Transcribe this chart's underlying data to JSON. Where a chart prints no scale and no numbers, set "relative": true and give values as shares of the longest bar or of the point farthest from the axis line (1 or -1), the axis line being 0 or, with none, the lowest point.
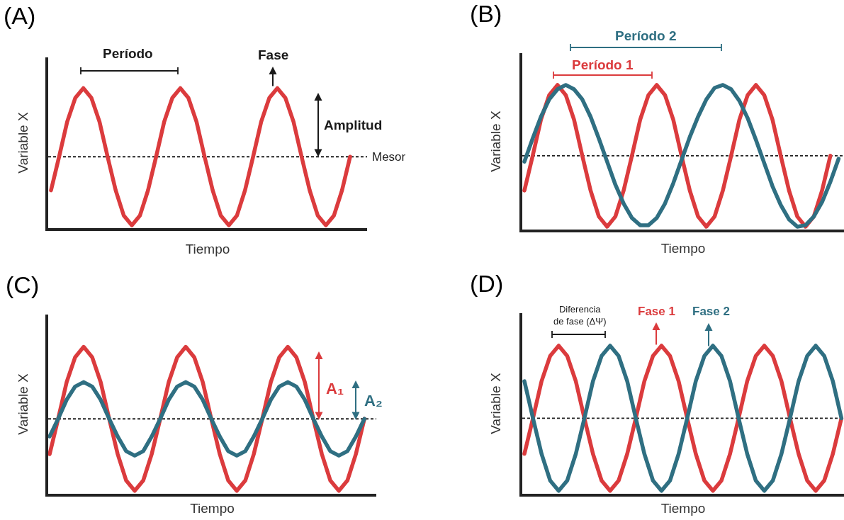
{
  "chart_data": [
    {
      "type": "line",
      "title": "(A)",
      "xlabel": "Tiempo",
      "ylabel": "Variable X",
      "relative": true,
      "categories": [
        null,
        null,
        null,
        null,
        null,
        null,
        null,
        null,
        null,
        null,
        null,
        null,
        null,
        null,
        null,
        null,
        null,
        null,
        null,
        null,
        null,
        null,
        null,
        null,
        null,
        null,
        null,
        null,
        null,
        null,
        null,
        null,
        null,
        null,
        null,
        null,
        null,
        null
      ],
      "series": [
        {
          "color": "#db3b3d",
          "values": [
            0.27,
            0.51,
            0.76,
            0.93,
            1,
            0.93,
            0.76,
            0.51,
            0.27,
            0.09,
            0.02,
            0.09,
            0.27,
            0.51,
            0.76,
            0.93,
            1,
            0.93,
            0.76,
            0.51,
            0.27,
            0.09,
            0.02,
            0.09,
            0.27,
            0.51,
            0.76,
            0.93,
            1,
            0.93,
            0.76,
            0.51,
            0.27,
            0.09,
            0.02,
            0.09,
            0.27,
            0.51
          ]
        }
      ],
      "ref_lines": [
        {
          "axis": "y",
          "value": 0.51,
          "label": "Mesor",
          "color": "#222222",
          "line_style": "dashed"
        }
      ],
      "annotations": [
        "Período",
        "Fase",
        "Amplitud"
      ]
    },
    {
      "type": "line",
      "title": "(B)",
      "xlabel": "Tiempo",
      "ylabel": "Variable X",
      "relative": true,
      "categories": [
        null,
        null,
        null,
        null,
        null,
        null,
        null,
        null,
        null,
        null,
        null,
        null,
        null,
        null,
        null,
        null,
        null,
        null,
        null,
        null,
        null,
        null,
        null,
        null,
        null,
        null,
        null,
        null,
        null,
        null,
        null,
        null,
        null,
        null,
        null,
        null,
        null,
        null,
        null
      ],
      "series": [
        {
          "color": "#db3b3d",
          "values": [
            0.27,
            0.51,
            0.76,
            0.93,
            1,
            0.93,
            0.76,
            0.51,
            0.27,
            0.09,
            0.02,
            0.09,
            0.27,
            0.51,
            0.76,
            0.93,
            1,
            0.93,
            0.76,
            0.51,
            0.27,
            0.09,
            0.02,
            0.09,
            0.27,
            0.51,
            0.76,
            0.93,
            1,
            0.93,
            0.76,
            0.51,
            0.27,
            0.09,
            0.02,
            0.09,
            0.27,
            0.51,
            null
          ]
        },
        {
          "color": "#2f6f82",
          "values": [
            0.47,
            0.63,
            0.78,
            0.9,
            0.97,
            1,
            0.97,
            0.9,
            0.78,
            0.63,
            0.47,
            0.31,
            0.18,
            0.08,
            0.03,
            0.03,
            0.08,
            0.18,
            0.32,
            0.48,
            0.64,
            0.78,
            0.9,
            0.98,
            1,
            0.97,
            0.89,
            0.77,
            0.62,
            0.46,
            0.3,
            0.17,
            0.07,
            0.02,
            0.03,
            0.09,
            0.19,
            0.33,
            0.49
          ]
        }
      ],
      "ref_lines": [
        {
          "axis": "y",
          "value": 0.51,
          "color": "#222222",
          "line_style": "dashed"
        }
      ],
      "annotations": [
        "Período 2",
        "Período 1"
      ]
    },
    {
      "type": "line",
      "title": "(C)",
      "xlabel": "Tiempo",
      "ylabel": "Variable X",
      "relative": true,
      "categories": [
        null,
        null,
        null,
        null,
        null,
        null,
        null,
        null,
        null,
        null,
        null,
        null,
        null,
        null,
        null,
        null,
        null,
        null,
        null,
        null,
        null,
        null,
        null,
        null,
        null,
        null,
        null,
        null,
        null,
        null,
        null,
        null,
        null,
        null,
        null,
        null,
        null,
        null
      ],
      "series": [
        {
          "color": "#db3b3d",
          "values": [
            0.27,
            0.51,
            0.76,
            0.93,
            1,
            0.93,
            0.76,
            0.51,
            0.27,
            0.09,
            0.02,
            0.09,
            0.27,
            0.51,
            0.76,
            0.93,
            1,
            0.93,
            0.76,
            0.51,
            0.27,
            0.09,
            0.02,
            0.09,
            0.27,
            0.51,
            0.76,
            0.93,
            1,
            0.93,
            0.76,
            0.51,
            0.27,
            0.09,
            0.02,
            0.09,
            0.27,
            0.51
          ]
        },
        {
          "color": "#2f6f82",
          "values": [
            0.39,
            0.51,
            0.64,
            0.73,
            0.76,
            0.73,
            0.64,
            0.51,
            0.39,
            0.29,
            0.26,
            0.29,
            0.39,
            0.51,
            0.64,
            0.73,
            0.76,
            0.73,
            0.64,
            0.51,
            0.39,
            0.29,
            0.26,
            0.29,
            0.39,
            0.51,
            0.64,
            0.73,
            0.76,
            0.73,
            0.64,
            0.51,
            0.39,
            0.29,
            0.26,
            0.29,
            0.39,
            0.51
          ]
        }
      ],
      "ref_lines": [
        {
          "axis": "y",
          "value": 0.51,
          "color": "#222222",
          "line_style": "dashed"
        }
      ],
      "annotations": [
        "A₁",
        "A₂"
      ]
    },
    {
      "type": "line",
      "title": "(D)",
      "xlabel": "Tiempo",
      "ylabel": "Variable X",
      "relative": true,
      "categories": [
        null,
        null,
        null,
        null,
        null,
        null,
        null,
        null,
        null,
        null,
        null,
        null,
        null,
        null,
        null,
        null,
        null,
        null,
        null,
        null,
        null,
        null,
        null,
        null,
        null,
        null,
        null,
        null,
        null,
        null,
        null,
        null,
        null,
        null,
        null,
        null,
        null,
        null
      ],
      "series": [
        {
          "color": "#db3b3d",
          "values": [
            0.27,
            0.51,
            0.76,
            0.93,
            1,
            0.93,
            0.76,
            0.51,
            0.27,
            0.09,
            0.02,
            0.09,
            0.27,
            0.51,
            0.76,
            0.93,
            1,
            0.93,
            0.76,
            0.51,
            0.27,
            0.09,
            0.02,
            0.09,
            0.27,
            0.51,
            0.76,
            0.93,
            1,
            0.93,
            0.76,
            0.51,
            0.27,
            0.09,
            0.02,
            0.09,
            0.27,
            0.51
          ]
        },
        {
          "color": "#2f6f82",
          "values": [
            0.76,
            0.51,
            0.27,
            0.09,
            0.02,
            0.09,
            0.27,
            0.51,
            0.76,
            0.93,
            1,
            0.93,
            0.76,
            0.51,
            0.27,
            0.09,
            0.02,
            0.09,
            0.27,
            0.51,
            0.76,
            0.93,
            1,
            0.93,
            0.76,
            0.51,
            0.27,
            0.09,
            0.02,
            0.09,
            0.27,
            0.51,
            0.76,
            0.93,
            1,
            0.93,
            0.76,
            0.51
          ]
        }
      ],
      "ref_lines": [
        {
          "axis": "y",
          "value": 0.51,
          "color": "#222222",
          "line_style": "dashed"
        }
      ],
      "annotations": [
        "Diferencia\nde fase (ΔΨ)",
        "Fase 1",
        "Fase 2"
      ]
    }
  ]
}
